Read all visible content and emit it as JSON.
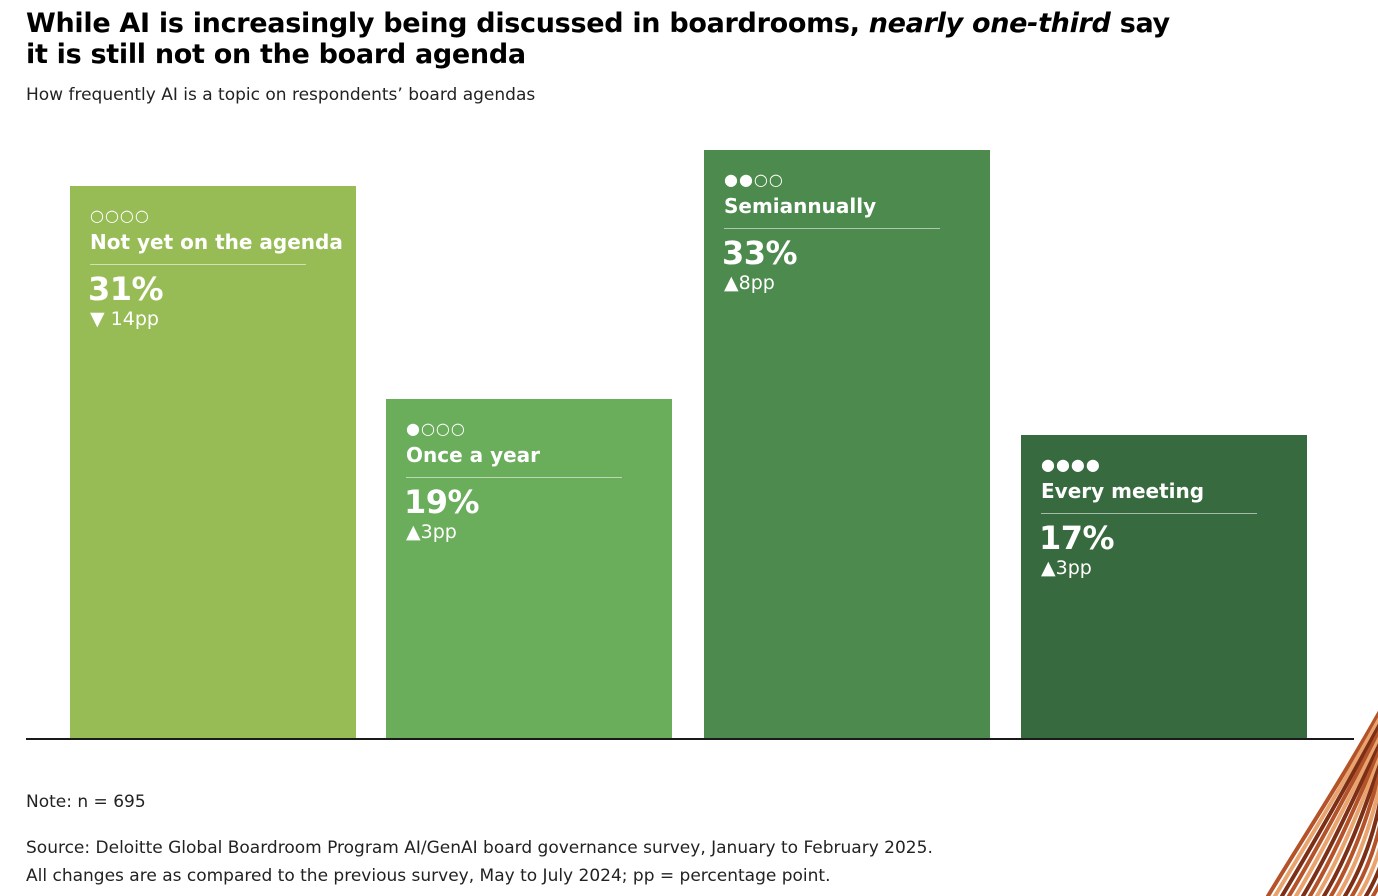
{
  "chart_data": {
    "type": "bar",
    "title_parts": {
      "before": "While AI is increasingly being discussed in boardrooms, ",
      "emphasis": "nearly one-third",
      "after": " say it is still not on the board agenda"
    },
    "subtitle": "How frequently AI is a topic on respondents’ board agendas",
    "categories": [
      "Not yet on the agenda",
      "Once a year",
      "Semiannually",
      "Every meeting"
    ],
    "values": [
      31,
      19,
      33,
      17
    ],
    "value_labels": [
      "31%",
      "19%",
      "33%",
      "17%"
    ],
    "changes": [
      "▼ 14pp",
      "▲3pp",
      "▲8pp",
      "▲3pp"
    ],
    "frequency_dots": [
      "○○○○",
      "●○○○",
      "●●○○",
      "●●●●"
    ],
    "colors": [
      "#97bc55",
      "#6aae5b",
      "#4c8a4d",
      "#376a3e"
    ],
    "ylim": [
      0,
      35
    ]
  },
  "footer": {
    "note": "Note: n = 695",
    "source_line1": "Source: Deloitte Global Boardroom Program AI/GenAI board governance survey, January to February 2025.",
    "source_line2": "All changes are as compared to the previous survey, May to July 2024; pp = percentage point."
  },
  "decoration_colors": [
    "#b4532a",
    "#e9a36e",
    "#7a2f16"
  ]
}
